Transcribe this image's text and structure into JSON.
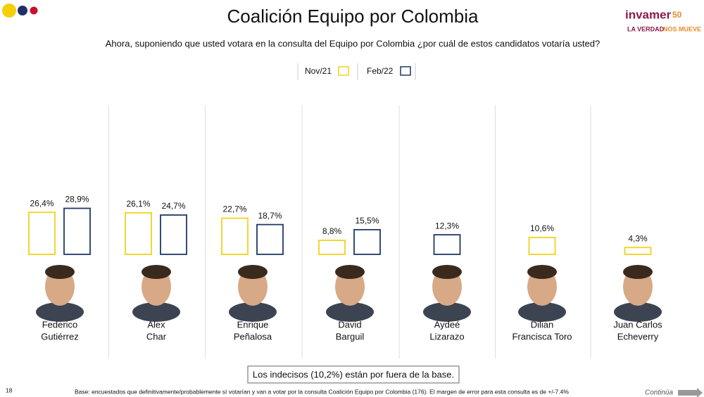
{
  "chart_data": {
    "type": "bar",
    "title": "Coalición Equipo por Colombia",
    "subtitle": "Ahora, suponiendo que usted votara en la consulta del Equipo por Colombia ¿por cuál de estos candidatos votaría usted?",
    "categories": [
      [
        "Federico",
        "Gutiérrez"
      ],
      [
        "Alex",
        "Char"
      ],
      [
        "Enrique",
        "Peñalosa"
      ],
      [
        "David",
        "Barguil"
      ],
      [
        "Aydeé",
        "Lizarazo"
      ],
      [
        "Dilian",
        "Francisca Toro"
      ],
      [
        "Juan Carlos",
        "Echeverry"
      ]
    ],
    "series": [
      {
        "name": "Nov/21",
        "color": "#f2d21b",
        "values": [
          26.4,
          26.1,
          22.7,
          8.8,
          null,
          10.6,
          4.3
        ],
        "value_labels": [
          "26,4%",
          "26,1%",
          "22,7%",
          "8,8%",
          null,
          "10,6%",
          "4,3%"
        ]
      },
      {
        "name": "Feb/22",
        "color": "#1f3864",
        "values": [
          28.9,
          24.7,
          18.7,
          15.5,
          12.3,
          null,
          null
        ],
        "value_labels": [
          "28,9%",
          "24,7%",
          "18,7%",
          "15,5%",
          "12,3%",
          null,
          null
        ]
      }
    ],
    "ylim": [
      0,
      30
    ],
    "note": "Los indecisos (10,2%) están por fuera de la base.",
    "footer": "Base: encuestados que definitivamente/probablemente sí votarían y van a votar por la consulta Coalición Equipo por Colombia (176).  El margen de error para esta consulta es de +/-7.4%",
    "page_number": "18",
    "continue_label": "Continúa",
    "logo": {
      "name": "invamer",
      "years": "50",
      "slogan_a": "LA VERDAD",
      "slogan_b": "NOS MUEVE"
    }
  }
}
